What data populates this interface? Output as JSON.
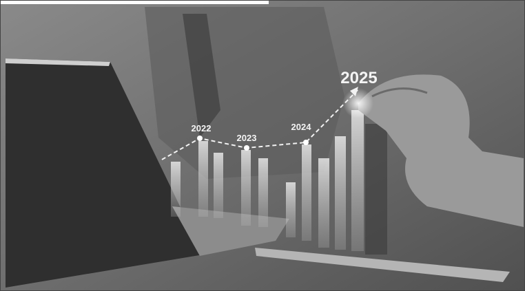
{
  "image": {
    "labels": [
      "2022",
      "2023",
      "2024",
      "2025"
    ]
  }
}
